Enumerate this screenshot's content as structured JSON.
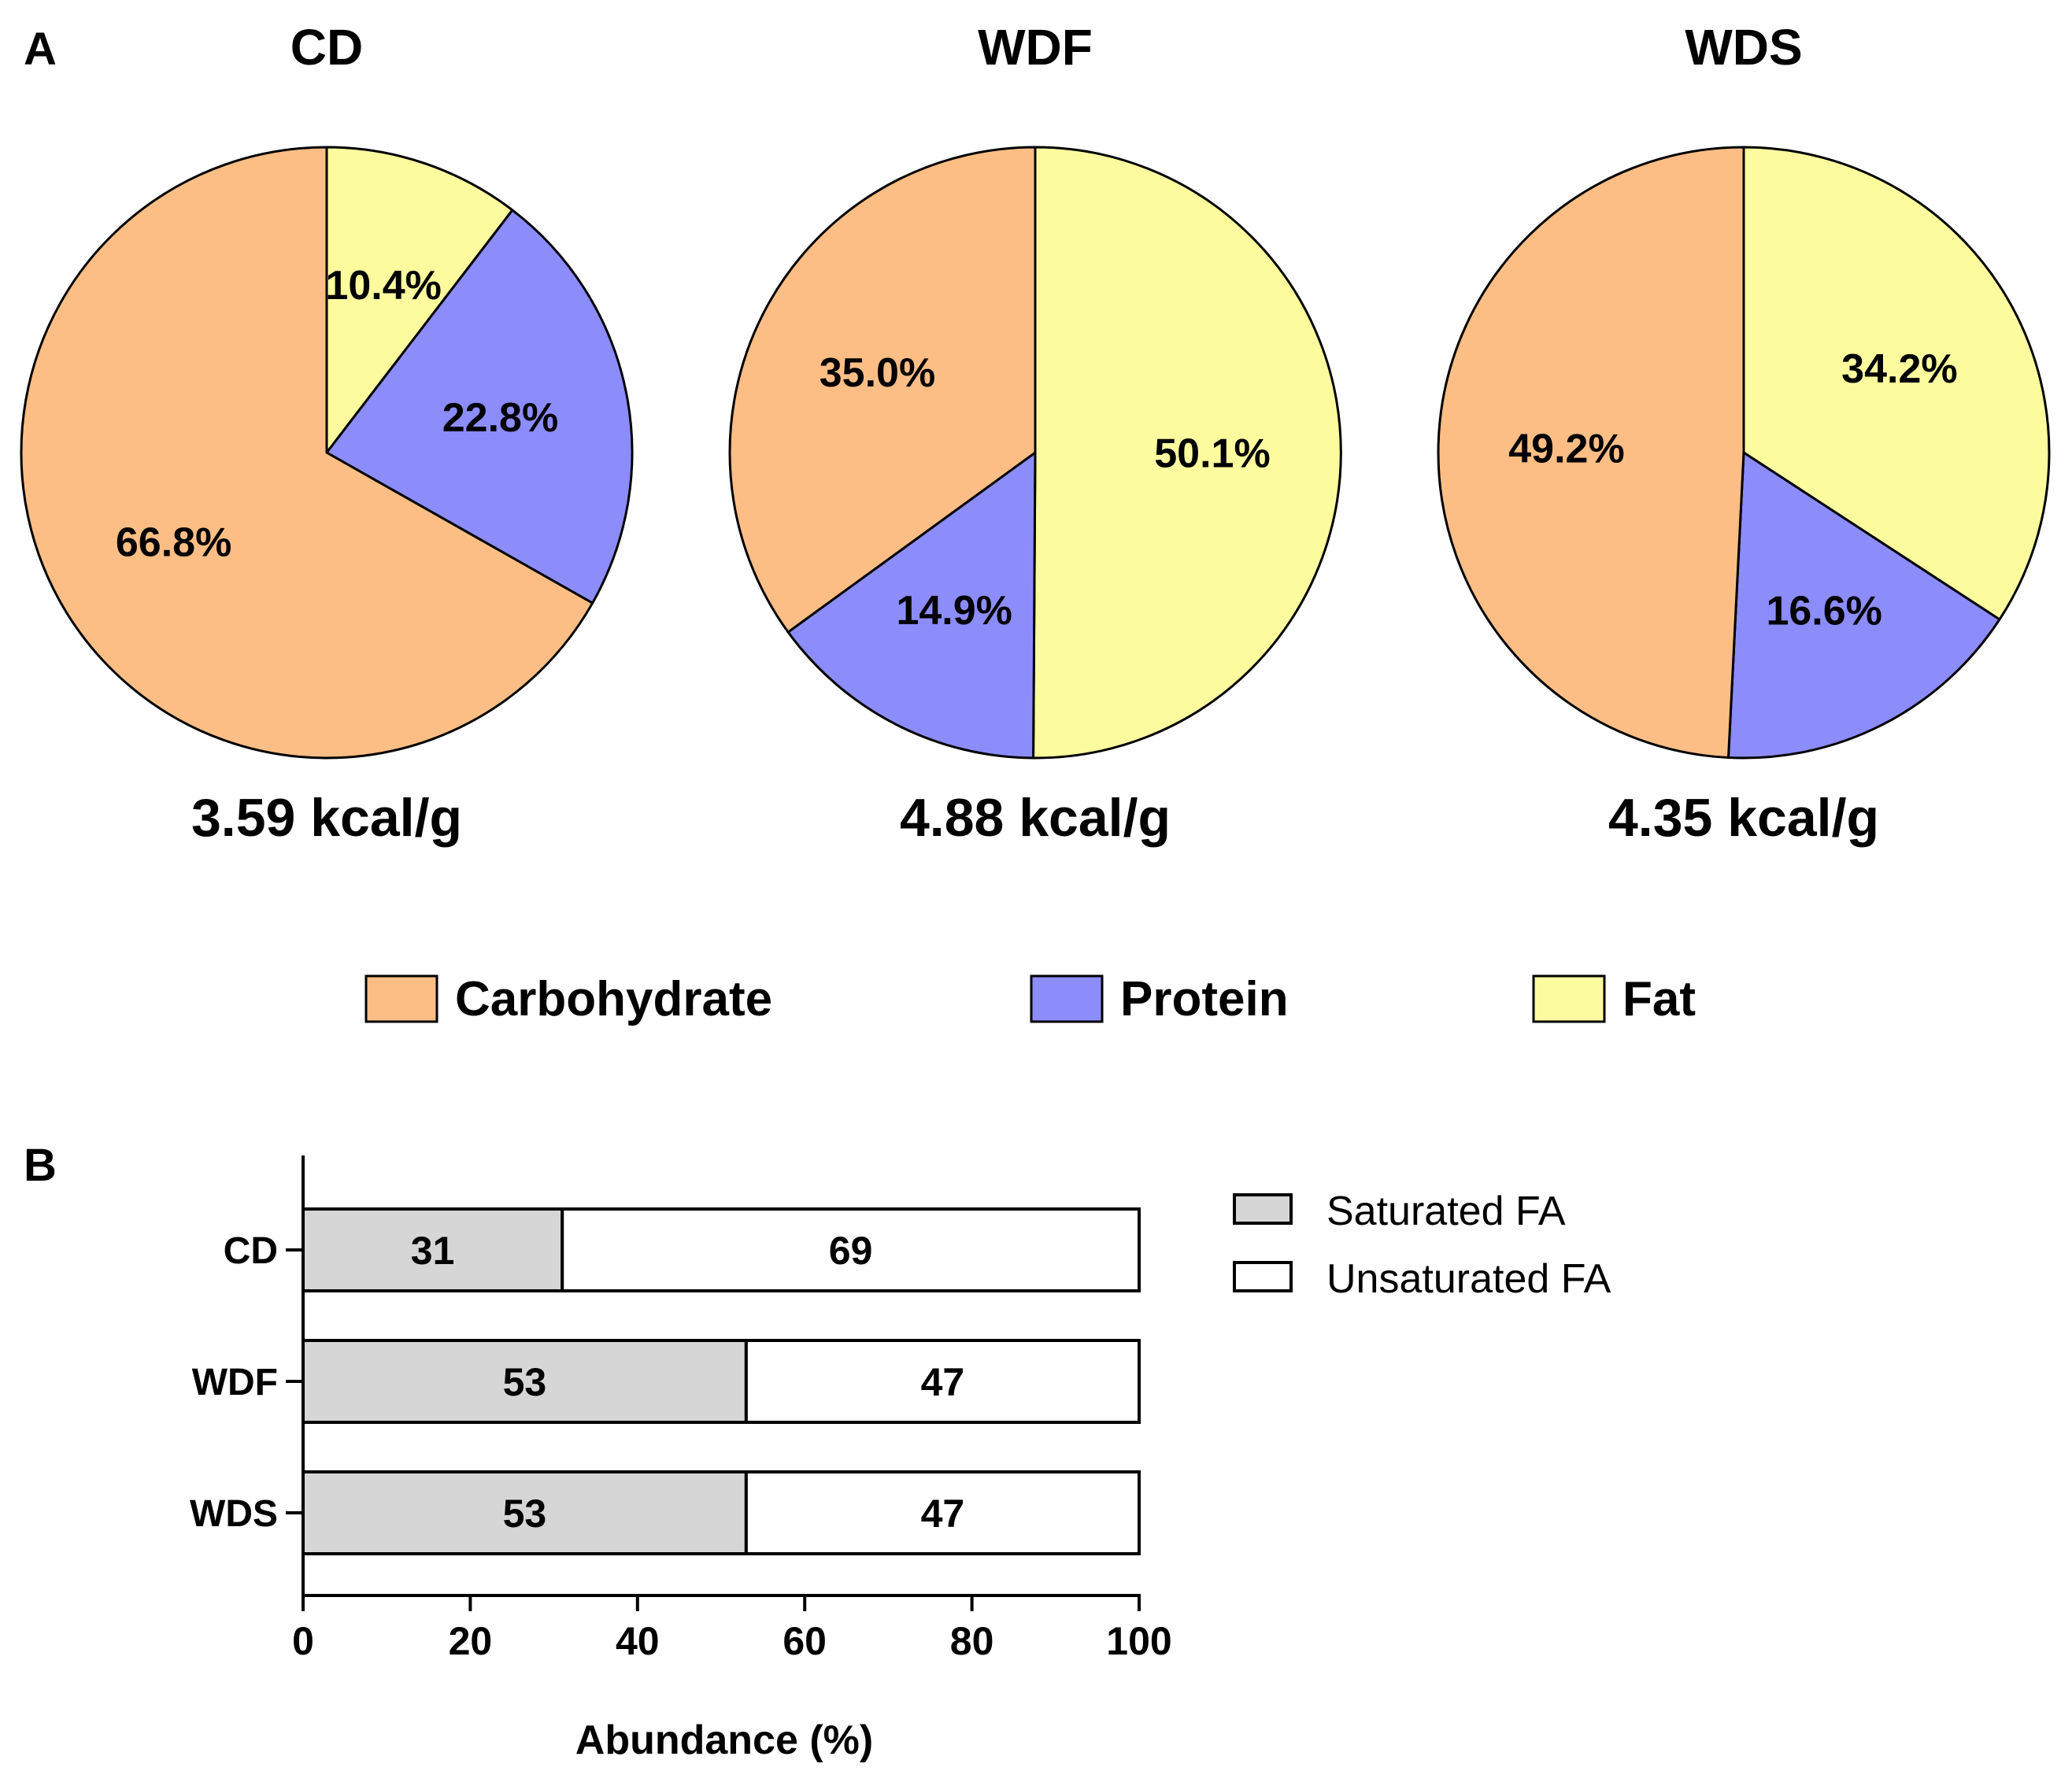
{
  "panel_labels": {
    "a": "A",
    "b": "B"
  },
  "colors": {
    "carbohydrate": "#FDBE85",
    "protein": "#8C8CFB",
    "fat": "#FCFC9F",
    "saturated": "#D6D6D6",
    "unsaturated": "#FFFFFF",
    "stroke": "#000000"
  },
  "chart_data": [
    {
      "type": "pie",
      "panel": "A",
      "charts": [
        {
          "title": "CD",
          "energy": "3.59 kcal/g",
          "slices": [
            {
              "name": "Fat",
              "value": 10.4,
              "label": "10.4%"
            },
            {
              "name": "Protein",
              "value": 22.8,
              "label": "22.8%"
            },
            {
              "name": "Carbohydrate",
              "value": 66.8,
              "label": "66.8%"
            }
          ]
        },
        {
          "title": "WDF",
          "energy": "4.88 kcal/g",
          "slices": [
            {
              "name": "Fat",
              "value": 50.1,
              "label": "50.1%"
            },
            {
              "name": "Protein",
              "value": 14.9,
              "label": "14.9%"
            },
            {
              "name": "Carbohydrate",
              "value": 35.0,
              "label": "35.0%"
            }
          ]
        },
        {
          "title": "WDS",
          "energy": "4.35 kcal/g",
          "slices": [
            {
              "name": "Fat",
              "value": 34.2,
              "label": "34.2%"
            },
            {
              "name": "Protein",
              "value": 16.6,
              "label": "16.6%"
            },
            {
              "name": "Carbohydrate",
              "value": 49.2,
              "label": "49.2%"
            }
          ]
        }
      ],
      "legend": [
        "Carbohydrate",
        "Protein",
        "Fat"
      ]
    },
    {
      "type": "bar",
      "orientation": "horizontal",
      "stacked": true,
      "panel": "B",
      "categories": [
        "CD",
        "WDF",
        "WDS"
      ],
      "series": [
        {
          "name": "Saturated FA",
          "values": [
            31,
            53,
            53
          ]
        },
        {
          "name": "Unsaturated FA",
          "values": [
            69,
            47,
            47
          ]
        }
      ],
      "xlabel": "Abundance (%)",
      "xlim": [
        0,
        100
      ],
      "xticks": [
        "0",
        "20",
        "40",
        "60",
        "80",
        "100"
      ],
      "legend": [
        "Saturated FA",
        "Unsaturated FA"
      ]
    }
  ]
}
